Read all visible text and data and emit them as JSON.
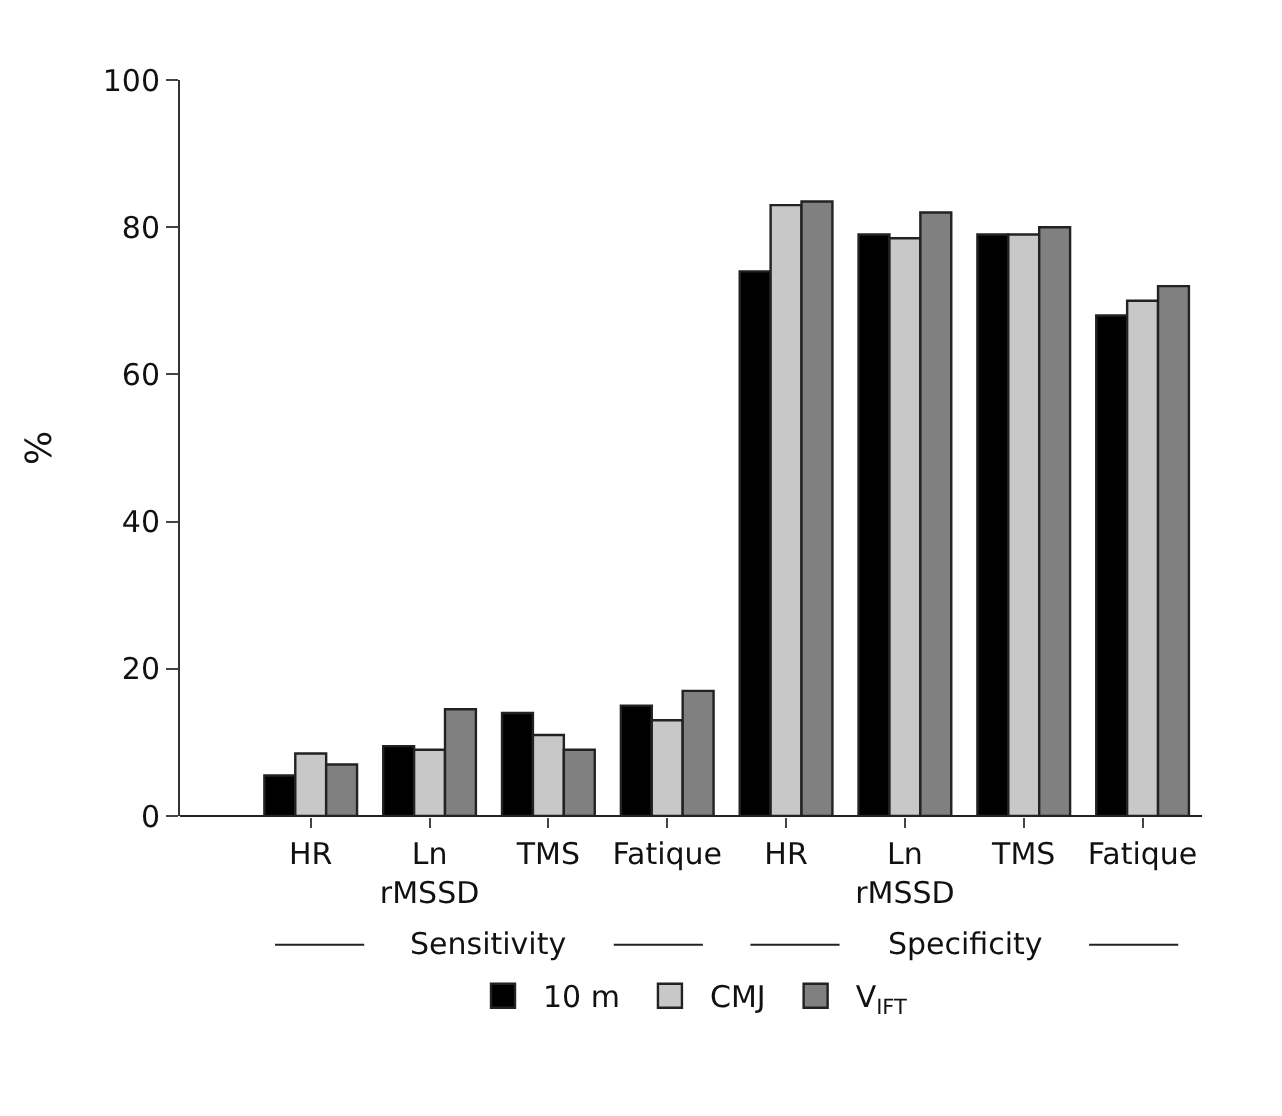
{
  "chart_data": {
    "type": "bar",
    "ylabel": "%",
    "categories": [
      "HR",
      "Ln rMSSD",
      "TMS",
      "Fatique",
      "HR",
      "Ln rMSSD",
      "TMS",
      "Fatique"
    ],
    "series": [
      {
        "name": "10 m",
        "color": "#000000",
        "values": [
          5.5,
          9.5,
          14,
          15,
          74,
          79,
          79,
          68
        ]
      },
      {
        "name": "CMJ",
        "color": "#c8c8c8",
        "values": [
          8.5,
          9,
          11,
          13,
          83,
          78.5,
          79,
          70
        ]
      },
      {
        "name": "V$_{IFT}$",
        "color": "#808080",
        "values": [
          7,
          14.5,
          9,
          17,
          83.5,
          82,
          80,
          72
        ]
      }
    ],
    "ylim": [
      0,
      100
    ],
    "yticks": [
      0,
      20,
      40,
      60,
      80,
      100
    ],
    "grid": false,
    "legend": "bottom",
    "annotations": [
      "Sensitivity",
      "Specificity"
    ]
  }
}
